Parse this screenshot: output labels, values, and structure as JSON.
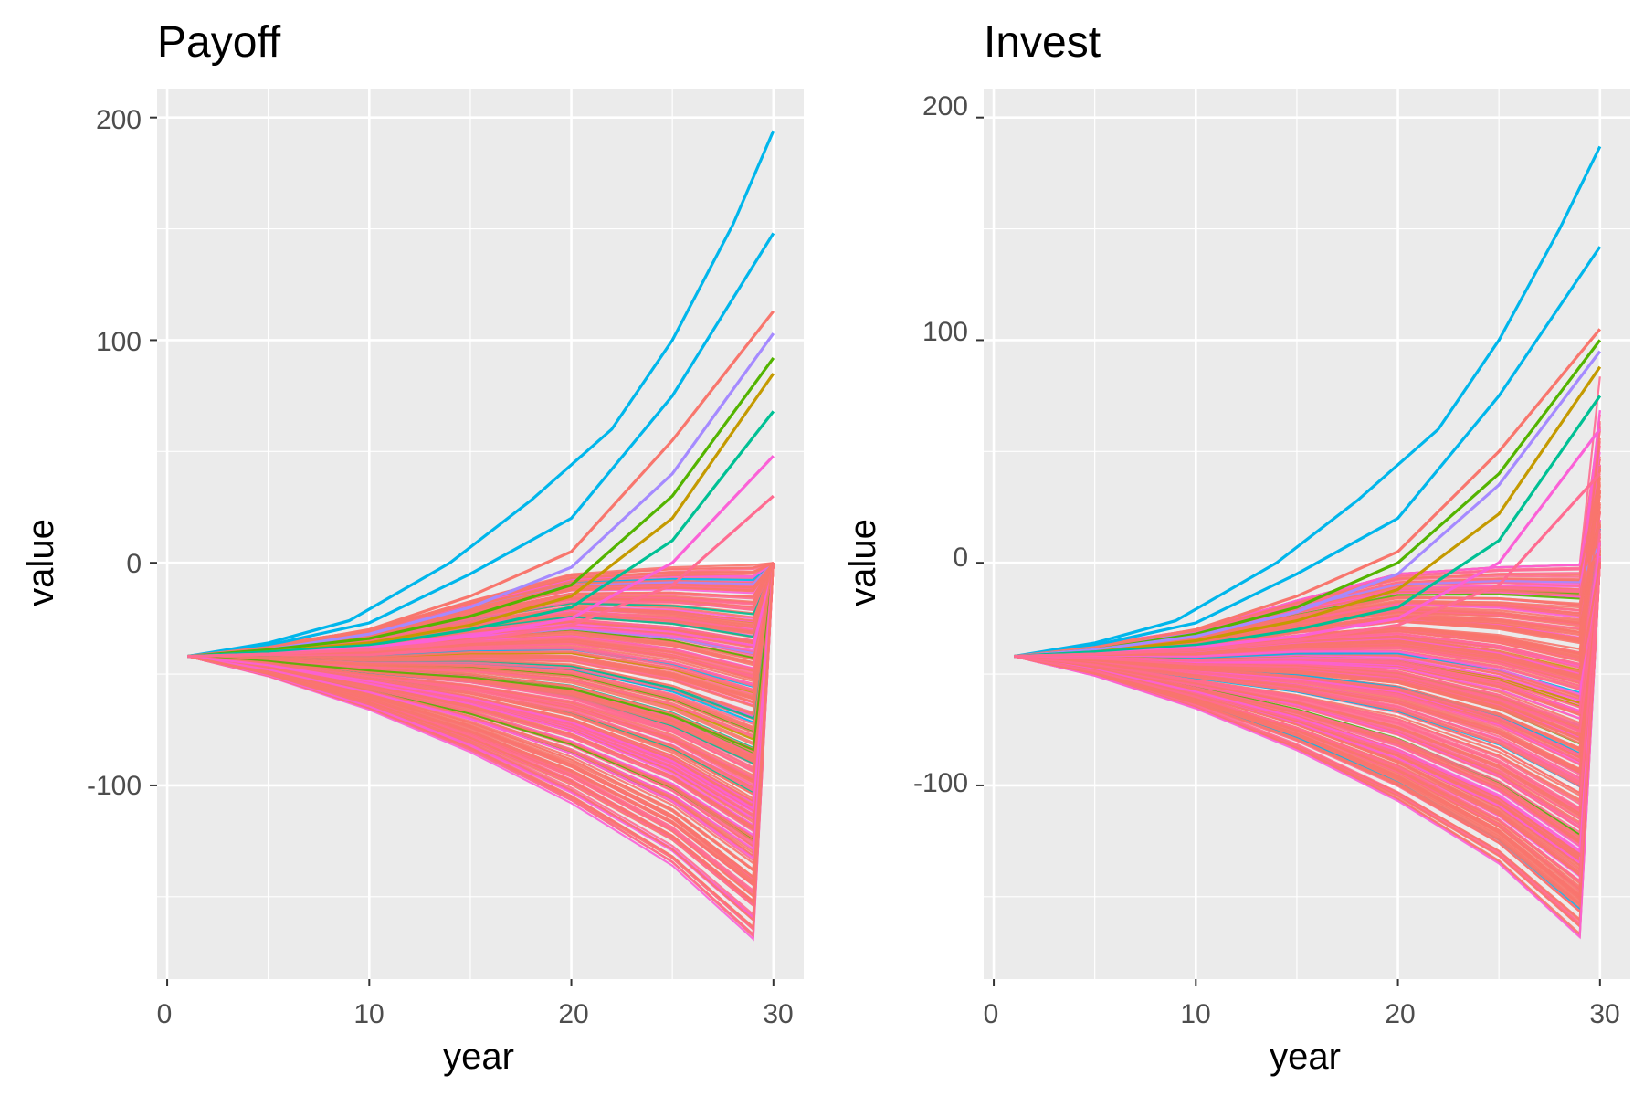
{
  "figure": {
    "background": "#ffffff",
    "panel_background": "#ebebeb",
    "grid_color": "#ffffff"
  },
  "chart_data": [
    {
      "type": "line",
      "title": "Payoff",
      "xlabel": "year",
      "ylabel": "value",
      "xlim": [
        -0.5,
        31.5
      ],
      "ylim": [
        -187,
        213
      ],
      "xticks": [
        0,
        10,
        20,
        30
      ],
      "xtick_labels": [
        "0",
        "10",
        "20",
        "30"
      ],
      "yticks": [
        -100,
        0,
        100,
        200
      ],
      "ytick_labels": [
        "-100",
        "0",
        "100",
        "200"
      ],
      "grid": true,
      "legend": "none",
      "n_series_approx": 1000,
      "palette": [
        "#F8766D",
        "#C49A00",
        "#53B400",
        "#00C094",
        "#00B6EB",
        "#A58AFF",
        "#FB61D7",
        "#FF6C91"
      ],
      "start": {
        "x": 1,
        "y": -42
      },
      "envelope": {
        "x": [
          1,
          5,
          10,
          15,
          20,
          25,
          29
        ],
        "lower": [
          -42,
          -51,
          -66,
          -85,
          -108,
          -136,
          -169
        ],
        "upper_negative_region": [
          -42,
          -37,
          -30,
          -17,
          -5,
          -2,
          -1
        ]
      },
      "end_point": {
        "x": 30,
        "y_payoff_reached": 0
      },
      "highlighted_series": [
        {
          "color": "#00B6EB",
          "x": [
            1,
            5,
            9,
            14,
            18,
            22,
            25,
            28,
            30
          ],
          "y": [
            -42,
            -36,
            -26,
            0,
            28,
            60,
            100,
            152,
            194
          ]
        },
        {
          "color": "#00B6EB",
          "x": [
            1,
            5,
            10,
            15,
            20,
            25,
            30
          ],
          "y": [
            -42,
            -37,
            -27,
            -5,
            20,
            75,
            148
          ]
        },
        {
          "color": "#F8766D",
          "x": [
            1,
            5,
            10,
            15,
            20,
            25,
            30
          ],
          "y": [
            -42,
            -38,
            -30,
            -15,
            5,
            55,
            113
          ]
        },
        {
          "color": "#A58AFF",
          "x": [
            1,
            5,
            10,
            15,
            20,
            25,
            30
          ],
          "y": [
            -42,
            -39,
            -32,
            -20,
            -2,
            40,
            103
          ]
        },
        {
          "color": "#53B400",
          "x": [
            1,
            5,
            10,
            15,
            20,
            25,
            30
          ],
          "y": [
            -42,
            -39,
            -34,
            -24,
            -10,
            30,
            92
          ]
        },
        {
          "color": "#C49A00",
          "x": [
            1,
            5,
            10,
            15,
            20,
            25,
            30
          ],
          "y": [
            -42,
            -40,
            -36,
            -28,
            -15,
            20,
            85
          ]
        },
        {
          "color": "#00C094",
          "x": [
            1,
            5,
            10,
            15,
            20,
            25,
            30
          ],
          "y": [
            -42,
            -40,
            -37,
            -30,
            -20,
            10,
            68
          ]
        },
        {
          "color": "#FB61D7",
          "x": [
            1,
            5,
            10,
            15,
            20,
            25,
            30
          ],
          "y": [
            -42,
            -41,
            -38,
            -33,
            -25,
            0,
            48
          ]
        },
        {
          "color": "#FF6C91",
          "x": [
            1,
            5,
            10,
            15,
            20,
            25,
            30
          ],
          "y": [
            -42,
            -41,
            -39,
            -35,
            -28,
            -10,
            30
          ]
        }
      ]
    },
    {
      "type": "line",
      "title": "Invest",
      "xlabel": "year",
      "ylabel": "value",
      "xlim": [
        -0.5,
        31.5
      ],
      "ylim": [
        -187,
        213
      ],
      "xticks": [
        0,
        10,
        20,
        30
      ],
      "xtick_labels": [
        "0",
        "10",
        "20",
        "30"
      ],
      "yticks": [
        -100,
        0,
        100,
        200
      ],
      "ytick_labels": [
        "-100",
        "0",
        "100",
        "200"
      ],
      "grid": true,
      "legend": "none",
      "n_series_approx": 1000,
      "palette": [
        "#F8766D",
        "#C49A00",
        "#53B400",
        "#00C094",
        "#00B6EB",
        "#A58AFF",
        "#FB61D7",
        "#FF6C91"
      ],
      "start": {
        "x": 1,
        "y": -42
      },
      "envelope": {
        "x": [
          1,
          5,
          10,
          15,
          20,
          25,
          29
        ],
        "lower": [
          -42,
          -51,
          -66,
          -85,
          -108,
          -136,
          -169
        ],
        "upper_negative_region": [
          -42,
          -37,
          -30,
          -17,
          -5,
          -2,
          -1
        ]
      },
      "end_point": {
        "x": 30,
        "y_final_range": [
          0,
          105
        ]
      },
      "highlighted_series": [
        {
          "color": "#00B6EB",
          "x": [
            1,
            5,
            9,
            14,
            18,
            22,
            25,
            28,
            30
          ],
          "y": [
            -42,
            -36,
            -26,
            0,
            28,
            60,
            100,
            150,
            187
          ]
        },
        {
          "color": "#00B6EB",
          "x": [
            1,
            5,
            10,
            15,
            20,
            25,
            30
          ],
          "y": [
            -42,
            -37,
            -27,
            -5,
            20,
            75,
            142
          ]
        },
        {
          "color": "#F8766D",
          "x": [
            1,
            5,
            10,
            15,
            20,
            25,
            30
          ],
          "y": [
            -42,
            -38,
            -30,
            -15,
            5,
            50,
            105
          ]
        },
        {
          "color": "#53B400",
          "x": [
            1,
            5,
            10,
            15,
            20,
            25,
            30
          ],
          "y": [
            -42,
            -39,
            -32,
            -20,
            0,
            40,
            100
          ]
        },
        {
          "color": "#A58AFF",
          "x": [
            1,
            5,
            10,
            15,
            20,
            25,
            30
          ],
          "y": [
            -42,
            -39,
            -33,
            -22,
            -5,
            35,
            95
          ]
        },
        {
          "color": "#C49A00",
          "x": [
            1,
            5,
            10,
            15,
            20,
            25,
            30
          ],
          "y": [
            -42,
            -40,
            -35,
            -26,
            -12,
            22,
            88
          ]
        },
        {
          "color": "#00C094",
          "x": [
            1,
            5,
            10,
            15,
            20,
            25,
            30
          ],
          "y": [
            -42,
            -40,
            -37,
            -30,
            -20,
            10,
            75
          ]
        },
        {
          "color": "#FB61D7",
          "x": [
            1,
            5,
            10,
            15,
            20,
            25,
            30
          ],
          "y": [
            -42,
            -41,
            -38,
            -33,
            -25,
            0,
            60
          ]
        },
        {
          "color": "#FF6C91",
          "x": [
            1,
            5,
            10,
            15,
            20,
            25,
            30
          ],
          "y": [
            -42,
            -41,
            -39,
            -35,
            -28,
            -10,
            40
          ]
        }
      ]
    }
  ]
}
